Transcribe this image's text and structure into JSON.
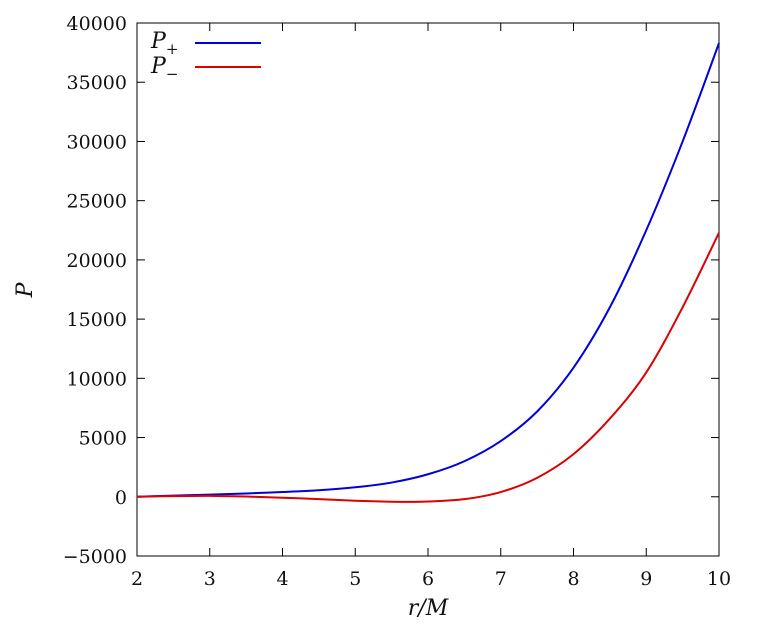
{
  "chart_data": {
    "type": "line",
    "xlabel": "r/M",
    "ylabel": "P",
    "xlim": [
      2,
      10
    ],
    "ylim": [
      -5000,
      40000
    ],
    "x_ticks": [
      2,
      3,
      4,
      5,
      6,
      7,
      8,
      9,
      10
    ],
    "y_ticks": [
      -5000,
      0,
      5000,
      10000,
      15000,
      20000,
      25000,
      30000,
      35000,
      40000
    ],
    "y_tick_labels": [
      "−5000",
      "0",
      "5000",
      "10000",
      "15000",
      "20000",
      "25000",
      "30000",
      "35000",
      "40000"
    ],
    "legend_position": "top-left",
    "grid": false,
    "series": [
      {
        "name": "P",
        "name_sub": "+",
        "color": "#0000dd",
        "x": [
          2,
          2.5,
          3,
          3.5,
          4,
          4.5,
          5,
          5.5,
          6,
          6.5,
          7,
          7.5,
          8,
          8.5,
          9,
          9.5,
          10
        ],
        "y": [
          0,
          100,
          180,
          280,
          400,
          550,
          800,
          1200,
          1900,
          3000,
          4700,
          7200,
          10900,
          16000,
          22500,
          30000,
          38300
        ]
      },
      {
        "name": "P",
        "name_sub": "−",
        "color": "#dd0000",
        "x": [
          2,
          2.5,
          3,
          3.5,
          4,
          4.5,
          5,
          5.5,
          5.75,
          6,
          6.5,
          7,
          7.5,
          8,
          8.5,
          9,
          9.5,
          10
        ],
        "y": [
          0,
          60,
          80,
          20,
          -80,
          -200,
          -330,
          -420,
          -430,
          -400,
          -200,
          400,
          1600,
          3600,
          6600,
          10500,
          16000,
          22300
        ]
      }
    ]
  }
}
